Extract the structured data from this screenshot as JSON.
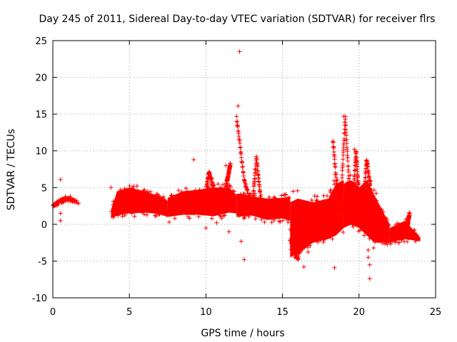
{
  "chart_data": {
    "type": "scatter",
    "title": "Day 245 of 2011, Sidereal Day-to-day VTEC variation (SDTVAR) for receiver flrs",
    "xlabel": "GPS time / hours",
    "ylabel": "SDTVAR / TECUs",
    "xlim": [
      0,
      25
    ],
    "ylim": [
      -10,
      25
    ],
    "xticks": [
      "0",
      "5",
      "10",
      "15",
      "20",
      "25"
    ],
    "yticks": [
      "-10",
      "-5",
      "0",
      "5",
      "10",
      "15",
      "20",
      "25"
    ],
    "grid": true,
    "marker": "+",
    "color": "#ff0000",
    "bands": [
      {
        "x": [
          0.0,
          0.3,
          0.6,
          1.0,
          1.4,
          1.7
        ],
        "lo": [
          2.4,
          2.7,
          3.0,
          3.2,
          3.1,
          2.6
        ],
        "hi": [
          2.6,
          3.2,
          3.7,
          3.8,
          3.6,
          2.9
        ]
      },
      {
        "x": [
          3.8,
          4.2,
          5.0,
          6.0,
          7.0,
          7.5
        ],
        "lo": [
          0.8,
          1.2,
          1.5,
          1.6,
          1.4,
          1.0
        ],
        "hi": [
          2.0,
          4.5,
          5.0,
          4.5,
          3.8,
          3.2
        ]
      },
      {
        "x": [
          7.5,
          8.5,
          9.5,
          10.5,
          11.5,
          12.0
        ],
        "lo": [
          1.0,
          1.3,
          1.3,
          1.1,
          1.6,
          1.5
        ],
        "hi": [
          3.6,
          4.5,
          4.7,
          5.0,
          5.0,
          4.0
        ]
      },
      {
        "x": [
          12.0,
          13.0,
          14.0,
          15.0,
          15.5
        ],
        "lo": [
          1.0,
          1.2,
          0.6,
          0.8,
          0.5
        ],
        "hi": [
          4.2,
          3.8,
          3.5,
          3.6,
          3.8
        ]
      },
      {
        "x": [
          15.5,
          16.0,
          17.0,
          18.0,
          18.5,
          19.0
        ],
        "lo": [
          -4.5,
          -4.0,
          -2.5,
          -2.0,
          -1.5,
          -0.5
        ],
        "hi": [
          3.0,
          3.5,
          3.0,
          3.5,
          5.5,
          6.0
        ]
      },
      {
        "x": [
          19.0,
          19.5,
          20.0,
          20.5,
          21.0,
          21.5,
          22.0
        ],
        "lo": [
          -0.5,
          0.0,
          -0.5,
          -1.5,
          -2.5,
          -2.5,
          -2.4
        ],
        "hi": [
          5.5,
          6.0,
          5.0,
          6.0,
          4.0,
          2.0,
          0.0
        ]
      },
      {
        "x": [
          22.0,
          23.0,
          24.0
        ],
        "lo": [
          -2.4,
          -2.0,
          -2.3
        ],
        "hi": [
          -0.5,
          0.5,
          -1.8
        ]
      }
    ],
    "spikes": [
      {
        "x": [
          12.0,
          12.5,
          13.0
        ],
        "y": [
          14.5,
          6.0,
          2.5
        ]
      },
      {
        "x": [
          13.0,
          13.3,
          13.6
        ],
        "y": [
          2.0,
          9.0,
          3.0
        ]
      },
      {
        "x": [
          18.3,
          18.6,
          19.0
        ],
        "y": [
          11.2,
          4.0,
          2.0
        ]
      },
      {
        "x": [
          18.8,
          19.1,
          19.4
        ],
        "y": [
          3.0,
          14.5,
          4.0
        ]
      },
      {
        "x": [
          19.6,
          19.8,
          20.0
        ],
        "y": [
          3.0,
          10.0,
          4.0
        ]
      },
      {
        "x": [
          20.3,
          20.5,
          20.8
        ],
        "y": [
          3.5,
          8.8,
          4.0
        ]
      },
      {
        "x": [
          10.0,
          10.2,
          10.5
        ],
        "y": [
          4.5,
          7.0,
          5.0
        ]
      },
      {
        "x": [
          11.3,
          11.6
        ],
        "y": [
          5.0,
          8.3
        ]
      },
      {
        "x": [
          15.5,
          16.0,
          16.3
        ],
        "y": [
          -2.0,
          -4.8,
          -2.0
        ]
      },
      {
        "x": [
          23.1,
          23.3
        ],
        "y": [
          -1.0,
          1.5
        ]
      }
    ],
    "outliers": [
      {
        "x": 0.5,
        "y": 6.1
      },
      {
        "x": 0.5,
        "y": 0.5
      },
      {
        "x": 0.5,
        "y": 1.5
      },
      {
        "x": 3.8,
        "y": 5.0
      },
      {
        "x": 9.2,
        "y": 8.8
      },
      {
        "x": 12.2,
        "y": 23.5
      },
      {
        "x": 12.1,
        "y": 16.1
      },
      {
        "x": 11.3,
        "y": 8.0
      },
      {
        "x": 11.5,
        "y": -1.0
      },
      {
        "x": 12.3,
        "y": -2.3
      },
      {
        "x": 12.5,
        "y": -4.8
      },
      {
        "x": 10.0,
        "y": -0.5
      },
      {
        "x": 10.7,
        "y": 0.2
      },
      {
        "x": 15.7,
        "y": 4.5
      },
      {
        "x": 15.8,
        "y": -4.5
      },
      {
        "x": 16.4,
        "y": -5.8
      },
      {
        "x": 18.4,
        "y": -5.9
      },
      {
        "x": 18.3,
        "y": 11.2
      },
      {
        "x": 19.0,
        "y": 14.7
      },
      {
        "x": 19.7,
        "y": 10.2
      },
      {
        "x": 20.7,
        "y": -7.4
      },
      {
        "x": 20.7,
        "y": -5.5
      },
      {
        "x": 20.6,
        "y": -4.5
      },
      {
        "x": 20.6,
        "y": -3.5
      },
      {
        "x": 13.2,
        "y": 4.2
      },
      {
        "x": 8.8,
        "y": 4.5
      },
      {
        "x": 7.6,
        "y": 0.3
      }
    ]
  }
}
